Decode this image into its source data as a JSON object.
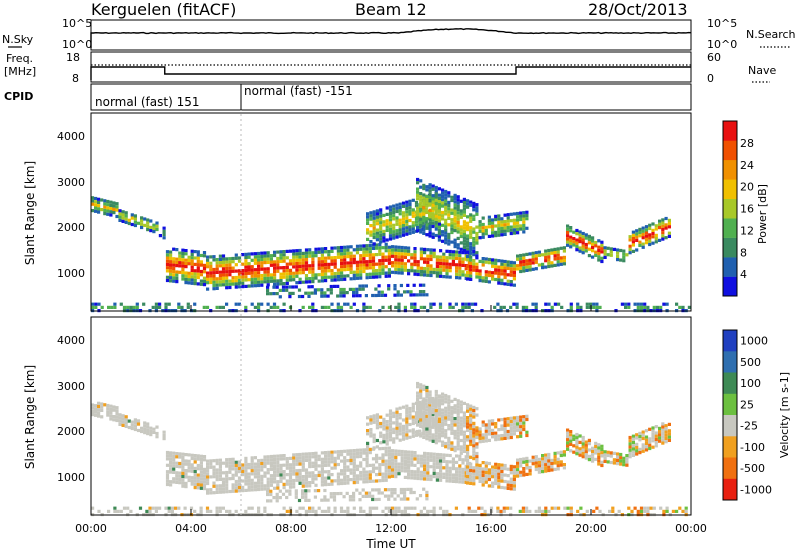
{
  "header": {
    "station": "Kerguelen (fitACF)",
    "beam": "Beam 12",
    "date": "28/Oct/2013"
  },
  "panels": {
    "nsky": {
      "left_label": "N.Sky",
      "right_label": "N.Search",
      "left_ticks": [
        "10^5",
        "10^0"
      ],
      "right_ticks": [
        "10^5",
        "10^0"
      ]
    },
    "freq": {
      "left_label_line1": "Freq.",
      "left_label_line2": "[MHz]",
      "right_label": "Nave",
      "left_ticks": [
        "18",
        "8"
      ],
      "right_ticks": [
        "60",
        "0"
      ]
    },
    "cpid": {
      "label": "CPID",
      "segments": [
        {
          "text": "normal (fast) 151",
          "start_hour": 0
        },
        {
          "text": "normal (fast) -151",
          "start_hour": 6
        }
      ]
    }
  },
  "chart_data": [
    {
      "type": "heatmap",
      "name": "power",
      "ylabel": "Slant Range [km]",
      "ylim": [
        180,
        4650
      ],
      "yticks": [
        "1000",
        "2000",
        "3000",
        "4000"
      ],
      "colorbar_label": "Power [dB]",
      "colorbar_ticks": [
        "4",
        "8",
        "12",
        "16",
        "20",
        "24",
        "28"
      ],
      "colorbar_range": [
        0,
        32
      ],
      "colors": [
        "#1010e0",
        "#2060b0",
        "#3a8a60",
        "#50b050",
        "#a8c828",
        "#f0c000",
        "#f09000",
        "#f05000",
        "#e81010"
      ]
    },
    {
      "type": "heatmap",
      "name": "velocity",
      "ylabel": "Slant Range [km]",
      "ylim": [
        180,
        4650
      ],
      "yticks": [
        "1000",
        "2000",
        "3000",
        "4000"
      ],
      "colorbar_label": "Velocity [m s-1]",
      "colorbar_ticks": [
        "1000",
        "500",
        "100",
        "25",
        "-25",
        "-100",
        "-500",
        "-1000"
      ],
      "colors": [
        "#2040c0",
        "#2f6fb0",
        "#3e8a55",
        "#6cc040",
        "#c8c8c0",
        "#f0a020",
        "#f07010",
        "#e82010"
      ]
    }
  ],
  "xaxis": {
    "label": "Time UT",
    "ticks": [
      "00:00",
      "04:00",
      "08:00",
      "12:00",
      "16:00",
      "20:00",
      "00:00"
    ]
  }
}
